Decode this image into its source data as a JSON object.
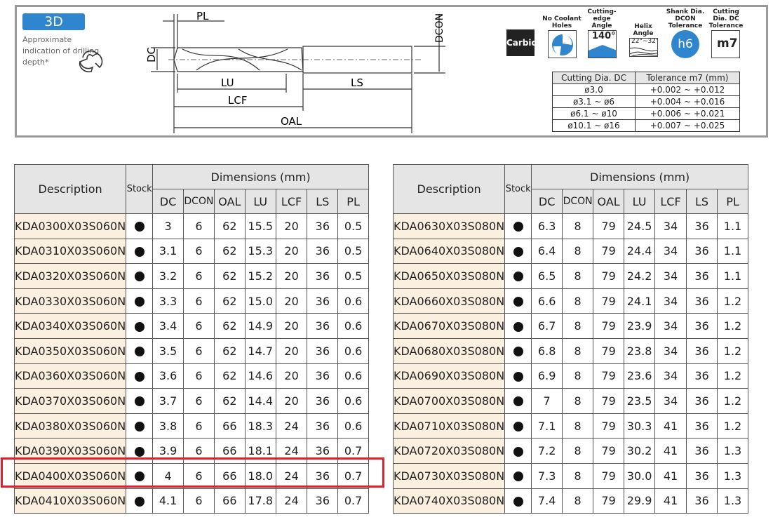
{
  "header": {
    "depth_badge": "3D",
    "depth_note": "Approximate indication of drilling depth*",
    "diagram_labels": {
      "pl": "PL",
      "dc": "DC",
      "dcon": "DCON",
      "lu": "LU",
      "lcf": "LCF",
      "ls": "LS",
      "oal": "OAL"
    },
    "material": "Carbide",
    "icons": [
      {
        "caption": "No Coolant Holes",
        "name": "no-coolant-holes-icon",
        "text": ""
      },
      {
        "caption": "Cutting-edge Angle",
        "name": "cutting-edge-angle-icon",
        "text": "140°"
      },
      {
        "caption": "Helix Angle",
        "name": "helix-angle-icon",
        "text": "22°~32°"
      },
      {
        "caption": "Shank Dia. DCON Tolerance",
        "name": "shank-tolerance-icon",
        "text": "h6"
      },
      {
        "caption": "Cutting Dia. DC Tolerance",
        "name": "cutting-tolerance-icon",
        "text": "m7"
      }
    ],
    "accent": "#2f86cf",
    "tolerance_table": {
      "headers": [
        "Cutting Dia. DC",
        "Tolerance m7 (mm)"
      ],
      "rows": [
        [
          "ø3.0",
          "+0.002 ~ +0.012"
        ],
        [
          "ø3.1 ~ ø6",
          "+0.004 ~ +0.016"
        ],
        [
          "ø6.1 ~ ø10",
          "+0.006 ~ +0.021"
        ],
        [
          "ø10.1 ~ ø16",
          "+0.007 ~ +0.025"
        ]
      ]
    }
  },
  "table_headers": {
    "description": "Description",
    "stock": "Stock",
    "dimensions": "Dimensions (mm)",
    "cols": [
      "DC",
      "DCON",
      "OAL",
      "LU",
      "LCF",
      "LS",
      "PL"
    ]
  },
  "highlight": {
    "row": "KDA0400X03S060N",
    "color": "#e0202a"
  },
  "left_rows": [
    [
      "KDA0300X03S060N",
      "3",
      "6",
      "62",
      "15.5",
      "20",
      "36",
      "0.5"
    ],
    [
      "KDA0310X03S060N",
      "3.1",
      "6",
      "62",
      "15.3",
      "20",
      "36",
      "0.5"
    ],
    [
      "KDA0320X03S060N",
      "3.2",
      "6",
      "62",
      "15.2",
      "20",
      "36",
      "0.5"
    ],
    [
      "KDA0330X03S060N",
      "3.3",
      "6",
      "62",
      "15.0",
      "20",
      "36",
      "0.6"
    ],
    [
      "KDA0340X03S060N",
      "3.4",
      "6",
      "62",
      "14.9",
      "20",
      "36",
      "0.6"
    ],
    [
      "KDA0350X03S060N",
      "3.5",
      "6",
      "62",
      "14.7",
      "20",
      "36",
      "0.6"
    ],
    [
      "KDA0360X03S060N",
      "3.6",
      "6",
      "62",
      "14.6",
      "20",
      "36",
      "0.6"
    ],
    [
      "KDA0370X03S060N",
      "3.7",
      "6",
      "62",
      "14.4",
      "20",
      "36",
      "0.6"
    ],
    [
      "KDA0380X03S060N",
      "3.8",
      "6",
      "66",
      "18.3",
      "24",
      "36",
      "0.6"
    ],
    [
      "KDA0390X03S060N",
      "3.9",
      "6",
      "66",
      "18.1",
      "24",
      "36",
      "0.7"
    ],
    [
      "KDA0400X03S060N",
      "4",
      "6",
      "66",
      "18.0",
      "24",
      "36",
      "0.7"
    ],
    [
      "KDA0410X03S060N",
      "4.1",
      "6",
      "66",
      "17.8",
      "24",
      "36",
      "0.7"
    ]
  ],
  "right_rows": [
    [
      "KDA0630X03S080N",
      "6.3",
      "8",
      "79",
      "24.5",
      "34",
      "36",
      "1.1"
    ],
    [
      "KDA0640X03S080N",
      "6.4",
      "8",
      "79",
      "24.4",
      "34",
      "36",
      "1.1"
    ],
    [
      "KDA0650X03S080N",
      "6.5",
      "8",
      "79",
      "24.2",
      "34",
      "36",
      "1.1"
    ],
    [
      "KDA0660X03S080N",
      "6.6",
      "8",
      "79",
      "24.1",
      "34",
      "36",
      "1.2"
    ],
    [
      "KDA0670X03S080N",
      "6.7",
      "8",
      "79",
      "23.9",
      "34",
      "36",
      "1.2"
    ],
    [
      "KDA0680X03S080N",
      "6.8",
      "8",
      "79",
      "23.8",
      "34",
      "36",
      "1.2"
    ],
    [
      "KDA0690X03S080N",
      "6.9",
      "8",
      "79",
      "23.6",
      "34",
      "36",
      "1.2"
    ],
    [
      "KDA0700X03S080N",
      "7",
      "8",
      "79",
      "23.5",
      "34",
      "36",
      "1.2"
    ],
    [
      "KDA0710X03S080N",
      "7.1",
      "8",
      "79",
      "30.3",
      "41",
      "36",
      "1.2"
    ],
    [
      "KDA0720X03S080N",
      "7.2",
      "8",
      "79",
      "30.2",
      "41",
      "36",
      "1.3"
    ],
    [
      "KDA0730X03S080N",
      "7.3",
      "8",
      "79",
      "30.0",
      "41",
      "36",
      "1.3"
    ],
    [
      "KDA0740X03S080N",
      "7.4",
      "8",
      "79",
      "29.9",
      "41",
      "36",
      "1.3"
    ]
  ]
}
